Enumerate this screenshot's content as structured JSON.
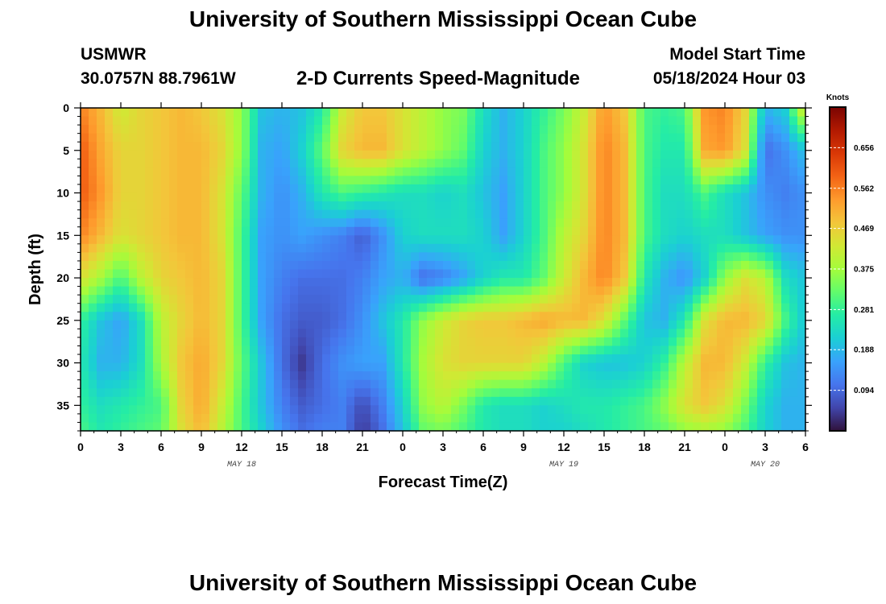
{
  "header": {
    "title": "University of Southern Mississippi Ocean Cube",
    "station": "USMWR",
    "coords": "30.0757N  88.7961W",
    "chart_title": "2-D Currents Speed-Magnitude",
    "model_start_label": "Model Start Time",
    "model_start_value": "05/18/2024 Hour 03"
  },
  "footer": {
    "title": "University of Southern Mississippi Ocean Cube"
  },
  "chart_data": {
    "type": "heatmap",
    "title": "2-D Currents Speed-Magnitude",
    "xlabel": "Forecast Time(Z)",
    "ylabel": "Depth (ft)",
    "x_tick_labels": [
      "0",
      "3",
      "6",
      "9",
      "12",
      "15",
      "18",
      "21",
      "0",
      "3",
      "6",
      "9",
      "12",
      "15",
      "18",
      "21",
      "0",
      "3",
      "6"
    ],
    "x_range_hours": [
      0,
      54
    ],
    "date_labels": [
      {
        "text": "MAY 18",
        "hour": 12
      },
      {
        "text": "MAY 19",
        "hour": 36
      },
      {
        "text": "MAY 20",
        "hour": 51
      }
    ],
    "y_ticks": [
      0,
      5,
      10,
      15,
      20,
      25,
      30,
      35
    ],
    "y_range": [
      0,
      38
    ],
    "y_inverted": true,
    "colorbar": {
      "title": "Knots",
      "ticks": [
        0.656,
        0.562,
        0.469,
        0.375,
        0.281,
        0.188,
        0.094
      ],
      "range": [
        0.0,
        0.75
      ],
      "colors": [
        "#30123b",
        "#4145ab",
        "#4675ed",
        "#39a2fc",
        "#1bcfd4",
        "#24eca6",
        "#61fc6c",
        "#a4fc3b",
        "#d1e834",
        "#f3c63a",
        "#fe9b2d",
        "#f36315",
        "#d93806",
        "#b11901",
        "#7a0402"
      ]
    },
    "speed_grid": {
      "x_hours": [
        0,
        1.5,
        3,
        4.5,
        6,
        7.5,
        9,
        10.5,
        12,
        13.5,
        15,
        16.5,
        18,
        19.5,
        21,
        22.5,
        24,
        25.5,
        27,
        28.5,
        30,
        31.5,
        33,
        34.5,
        36,
        37.5,
        39,
        40.5,
        42,
        43.5,
        45,
        46.5,
        48,
        49.5,
        51,
        52.5,
        54
      ],
      "depths_ft": [
        0,
        5,
        10,
        15,
        20,
        25,
        30,
        35,
        38
      ],
      "values_knots": [
        [
          0.56,
          0.5,
          0.42,
          0.46,
          0.48,
          0.5,
          0.48,
          0.44,
          0.36,
          0.2,
          0.18,
          0.2,
          0.26,
          0.42,
          0.48,
          0.48,
          0.44,
          0.4,
          0.36,
          0.34,
          0.24,
          0.18,
          0.22,
          0.28,
          0.34,
          0.42,
          0.54,
          0.48,
          0.3,
          0.28,
          0.3,
          0.54,
          0.56,
          0.46,
          0.18,
          0.22,
          0.46
        ],
        [
          0.6,
          0.52,
          0.46,
          0.46,
          0.48,
          0.5,
          0.5,
          0.46,
          0.36,
          0.18,
          0.16,
          0.22,
          0.32,
          0.46,
          0.5,
          0.5,
          0.44,
          0.4,
          0.36,
          0.32,
          0.22,
          0.18,
          0.22,
          0.3,
          0.36,
          0.44,
          0.56,
          0.5,
          0.3,
          0.26,
          0.26,
          0.52,
          0.54,
          0.44,
          0.1,
          0.14,
          0.2
        ],
        [
          0.6,
          0.54,
          0.46,
          0.46,
          0.48,
          0.5,
          0.5,
          0.44,
          0.32,
          0.18,
          0.14,
          0.18,
          0.26,
          0.3,
          0.28,
          0.26,
          0.24,
          0.24,
          0.22,
          0.24,
          0.2,
          0.16,
          0.22,
          0.3,
          0.36,
          0.44,
          0.56,
          0.5,
          0.3,
          0.24,
          0.24,
          0.3,
          0.24,
          0.2,
          0.14,
          0.12,
          0.14
        ],
        [
          0.56,
          0.5,
          0.44,
          0.46,
          0.48,
          0.5,
          0.5,
          0.44,
          0.3,
          0.16,
          0.14,
          0.16,
          0.14,
          0.12,
          0.08,
          0.14,
          0.22,
          0.24,
          0.24,
          0.24,
          0.22,
          0.16,
          0.22,
          0.3,
          0.4,
          0.46,
          0.56,
          0.5,
          0.3,
          0.24,
          0.22,
          0.24,
          0.24,
          0.2,
          0.16,
          0.14,
          0.14
        ],
        [
          0.44,
          0.38,
          0.3,
          0.4,
          0.46,
          0.48,
          0.5,
          0.46,
          0.3,
          0.16,
          0.12,
          0.1,
          0.1,
          0.1,
          0.12,
          0.16,
          0.18,
          0.1,
          0.12,
          0.16,
          0.22,
          0.26,
          0.26,
          0.32,
          0.42,
          0.5,
          0.56,
          0.48,
          0.26,
          0.18,
          0.14,
          0.22,
          0.36,
          0.44,
          0.4,
          0.24,
          0.2
        ],
        [
          0.28,
          0.2,
          0.16,
          0.24,
          0.4,
          0.46,
          0.5,
          0.46,
          0.3,
          0.16,
          0.1,
          0.08,
          0.08,
          0.1,
          0.14,
          0.2,
          0.26,
          0.36,
          0.42,
          0.46,
          0.48,
          0.48,
          0.5,
          0.52,
          0.5,
          0.5,
          0.44,
          0.32,
          0.2,
          0.18,
          0.26,
          0.44,
          0.5,
          0.5,
          0.46,
          0.3,
          0.2
        ],
        [
          0.26,
          0.18,
          0.18,
          0.24,
          0.38,
          0.48,
          0.52,
          0.46,
          0.32,
          0.2,
          0.1,
          0.04,
          0.1,
          0.14,
          0.16,
          0.16,
          0.26,
          0.38,
          0.44,
          0.46,
          0.46,
          0.46,
          0.46,
          0.4,
          0.3,
          0.22,
          0.2,
          0.2,
          0.22,
          0.28,
          0.4,
          0.5,
          0.5,
          0.42,
          0.28,
          0.2,
          0.18
        ],
        [
          0.28,
          0.24,
          0.26,
          0.28,
          0.3,
          0.46,
          0.52,
          0.42,
          0.3,
          0.2,
          0.12,
          0.08,
          0.1,
          0.12,
          0.06,
          0.12,
          0.22,
          0.36,
          0.4,
          0.34,
          0.26,
          0.24,
          0.24,
          0.22,
          0.24,
          0.26,
          0.26,
          0.28,
          0.3,
          0.36,
          0.44,
          0.48,
          0.44,
          0.34,
          0.22,
          0.18,
          0.18
        ],
        [
          0.3,
          0.26,
          0.28,
          0.3,
          0.32,
          0.44,
          0.5,
          0.4,
          0.3,
          0.22,
          0.14,
          0.1,
          0.12,
          0.12,
          0.04,
          0.1,
          0.2,
          0.32,
          0.34,
          0.3,
          0.26,
          0.24,
          0.24,
          0.22,
          0.22,
          0.24,
          0.26,
          0.28,
          0.3,
          0.32,
          0.36,
          0.38,
          0.36,
          0.3,
          0.22,
          0.18,
          0.18
        ]
      ]
    }
  }
}
